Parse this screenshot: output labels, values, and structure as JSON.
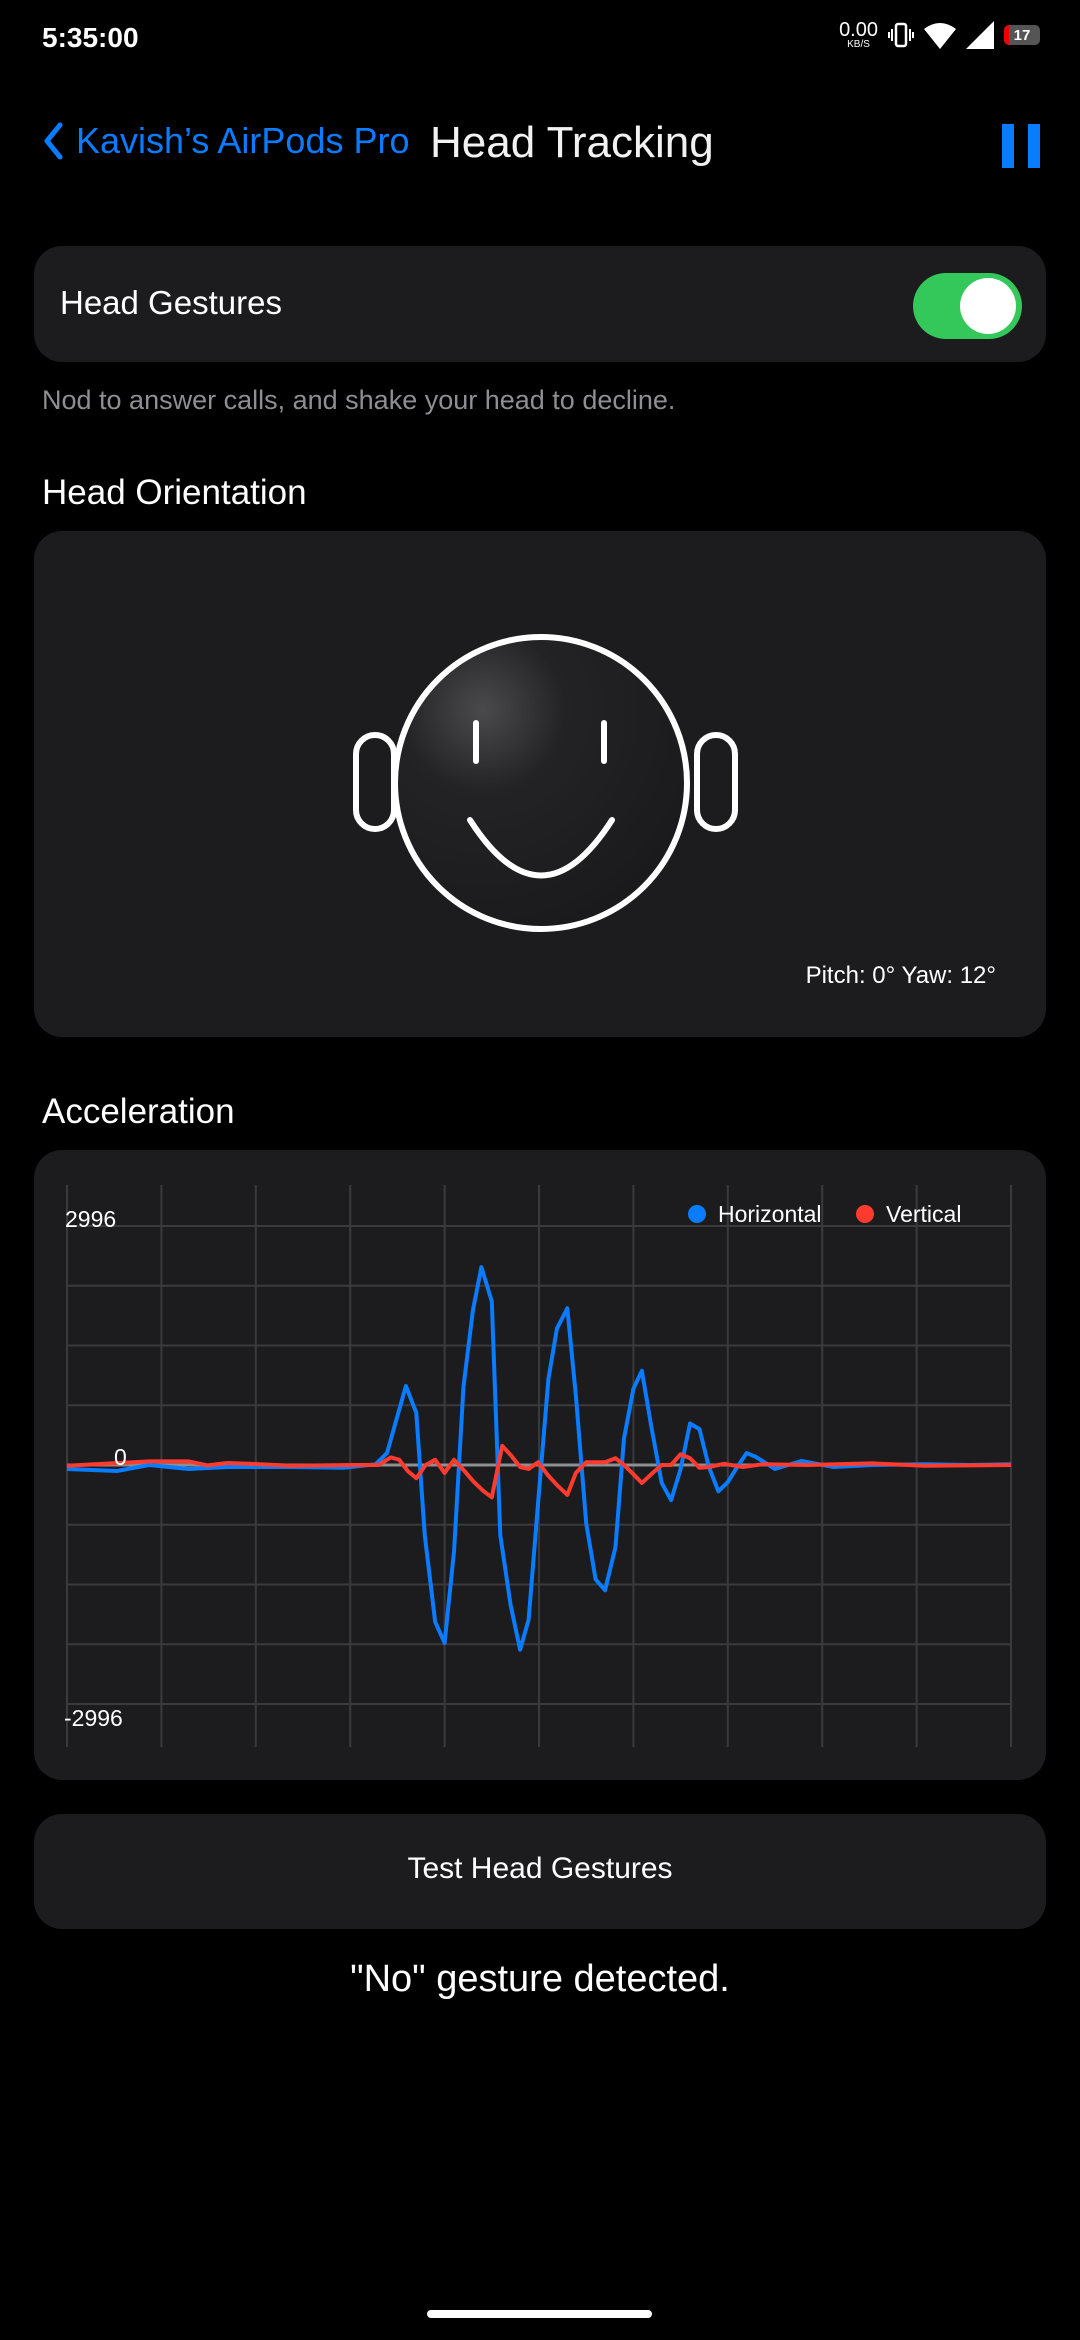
{
  "status_bar": {
    "time": "5:35:00",
    "net_speed": "0.00",
    "net_unit": "KB/S",
    "battery": "17"
  },
  "nav": {
    "back_label": "Kavish’s AirPods Pro",
    "title": "Head Tracking"
  },
  "gestures": {
    "label": "Head Gestures",
    "enabled": true,
    "caption": "Nod to answer calls, and shake your head to decline."
  },
  "orientation": {
    "heading": "Head Orientation",
    "readout": "Pitch: 0° Yaw: 12°"
  },
  "acceleration": {
    "heading": "Acceleration"
  },
  "test_button": {
    "label": "Test Head Gestures"
  },
  "result": "\"No\" gesture detected.",
  "colors": {
    "accent": "#0a7cff",
    "toggle_on": "#34c759",
    "horizontal": "#0a7cff",
    "vertical": "#ff3b30",
    "card": "#1c1c1e"
  },
  "chart_data": {
    "type": "line",
    "ylim": [
      -2996,
      2996
    ],
    "yticks": [
      "2996",
      "0",
      "-2996"
    ],
    "grid": true,
    "legend": "top-right",
    "series": [
      {
        "name": "Horizontal",
        "color": "#0a7cff",
        "points": [
          [
            0,
            -50
          ],
          [
            5.3,
            -75
          ],
          [
            8.7,
            0
          ],
          [
            12.9,
            -50
          ],
          [
            17,
            -25
          ],
          [
            23.8,
            -25
          ],
          [
            29.3,
            -35
          ],
          [
            32.7,
            10
          ],
          [
            33.9,
            150
          ],
          [
            35.9,
            990
          ],
          [
            37,
            655
          ],
          [
            37.9,
            -880
          ],
          [
            39,
            -1965
          ],
          [
            40,
            -2230
          ],
          [
            41,
            -1080
          ],
          [
            42,
            980
          ],
          [
            43,
            1940
          ],
          [
            43.9,
            2480
          ],
          [
            45,
            2050
          ],
          [
            45.9,
            -880
          ],
          [
            47,
            -1760
          ],
          [
            48,
            -2315
          ],
          [
            48.9,
            -1940
          ],
          [
            49.9,
            -480
          ],
          [
            51,
            1080
          ],
          [
            51.9,
            1710
          ],
          [
            53,
            1965
          ],
          [
            53.9,
            880
          ],
          [
            55,
            -730
          ],
          [
            56,
            -1435
          ],
          [
            57,
            -1570
          ],
          [
            58.1,
            -1030
          ],
          [
            59,
            330
          ],
          [
            60,
            955
          ],
          [
            60.9,
            1180
          ],
          [
            61.9,
            480
          ],
          [
            63,
            -225
          ],
          [
            64,
            -440
          ],
          [
            65,
            -50
          ],
          [
            66,
            520
          ],
          [
            67,
            450
          ],
          [
            68,
            -25
          ],
          [
            69,
            -330
          ],
          [
            70,
            -215
          ],
          [
            71,
            -25
          ],
          [
            72,
            150
          ],
          [
            73,
            100
          ],
          [
            75,
            -50
          ],
          [
            77.8,
            50
          ],
          [
            81.2,
            -25
          ],
          [
            85.3,
            0
          ],
          [
            90.8,
            10
          ],
          [
            95.6,
            0
          ],
          [
            100,
            10
          ]
        ]
      },
      {
        "name": "Vertical",
        "color": "#ff3b30",
        "points": [
          [
            0,
            -10
          ],
          [
            8.7,
            45
          ],
          [
            12.9,
            45
          ],
          [
            14.9,
            -5
          ],
          [
            17,
            25
          ],
          [
            20.4,
            10
          ],
          [
            23.8,
            -10
          ],
          [
            30.6,
            0
          ],
          [
            33,
            0
          ],
          [
            34.3,
            95
          ],
          [
            35.2,
            65
          ],
          [
            36.1,
            -75
          ],
          [
            37,
            -165
          ],
          [
            38,
            0
          ],
          [
            39,
            65
          ],
          [
            40,
            -100
          ],
          [
            41,
            65
          ],
          [
            42.1,
            -75
          ],
          [
            43,
            -200
          ],
          [
            44.1,
            -325
          ],
          [
            45,
            -405
          ],
          [
            46.1,
            240
          ],
          [
            47,
            125
          ],
          [
            48,
            -25
          ],
          [
            48.9,
            -50
          ],
          [
            49.9,
            35
          ],
          [
            51,
            -135
          ],
          [
            51.9,
            -250
          ],
          [
            53,
            -375
          ],
          [
            53.9,
            -100
          ],
          [
            55,
            35
          ],
          [
            56,
            35
          ],
          [
            57,
            35
          ],
          [
            58.1,
            85
          ],
          [
            59,
            0
          ],
          [
            60,
            -115
          ],
          [
            60.9,
            -225
          ],
          [
            61.9,
            -115
          ],
          [
            63,
            0
          ],
          [
            64,
            0
          ],
          [
            65,
            135
          ],
          [
            66,
            85
          ],
          [
            67,
            -35
          ],
          [
            68,
            -25
          ],
          [
            69.6,
            15
          ],
          [
            71.6,
            -25
          ],
          [
            73.7,
            10
          ],
          [
            78.5,
            0
          ],
          [
            85.3,
            20
          ],
          [
            90.8,
            -10
          ],
          [
            100,
            0
          ]
        ]
      }
    ]
  }
}
